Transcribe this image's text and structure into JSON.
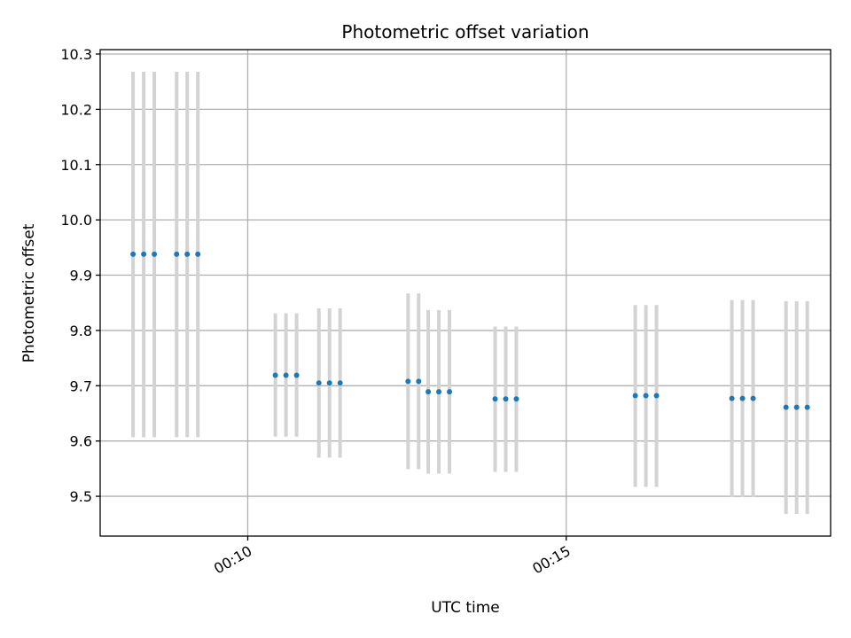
{
  "chart_data": {
    "type": "scatter",
    "title": "Photometric offset variation",
    "xlabel": "UTC time",
    "ylabel": "Photometric offset",
    "x_axis_kind": "time",
    "xlim": [
      "00:07:41",
      "00:19:09"
    ],
    "ylim": [
      9.428,
      10.308
    ],
    "x_ticks": [
      "00:10",
      "00:15"
    ],
    "y_ticks": [
      9.5,
      9.6,
      9.7,
      9.8,
      9.9,
      10.0,
      10.1,
      10.2,
      10.3
    ],
    "y_tick_labels": [
      "9.5",
      "9.6",
      "9.7",
      "9.8",
      "9.9",
      "10.0",
      "10.1",
      "10.2",
      "10.3"
    ],
    "grid": true,
    "legend": "none",
    "marker_color": "#1f77b4",
    "errorbar_color": "#d3d3d3",
    "points": [
      {
        "t": "00:08:12",
        "y": 9.938,
        "lo": 9.607,
        "hi": 10.268
      },
      {
        "t": "00:08:22",
        "y": 9.938,
        "lo": 9.607,
        "hi": 10.268
      },
      {
        "t": "00:08:32",
        "y": 9.938,
        "lo": 9.607,
        "hi": 10.268
      },
      {
        "t": "00:08:53",
        "y": 9.938,
        "lo": 9.607,
        "hi": 10.268
      },
      {
        "t": "00:09:03",
        "y": 9.938,
        "lo": 9.607,
        "hi": 10.268
      },
      {
        "t": "00:09:13",
        "y": 9.938,
        "lo": 9.607,
        "hi": 10.268
      },
      {
        "t": "00:10:26",
        "y": 9.719,
        "lo": 9.608,
        "hi": 9.831
      },
      {
        "t": "00:10:36",
        "y": 9.719,
        "lo": 9.608,
        "hi": 9.831
      },
      {
        "t": "00:10:46",
        "y": 9.719,
        "lo": 9.608,
        "hi": 9.831
      },
      {
        "t": "00:11:07",
        "y": 9.705,
        "lo": 9.57,
        "hi": 9.84
      },
      {
        "t": "00:11:17",
        "y": 9.705,
        "lo": 9.57,
        "hi": 9.84
      },
      {
        "t": "00:11:27",
        "y": 9.705,
        "lo": 9.57,
        "hi": 9.84
      },
      {
        "t": "00:12:31",
        "y": 9.708,
        "lo": 9.549,
        "hi": 9.867
      },
      {
        "t": "00:12:41",
        "y": 9.708,
        "lo": 9.549,
        "hi": 9.867
      },
      {
        "t": "00:12:50",
        "y": 9.689,
        "lo": 9.541,
        "hi": 9.837
      },
      {
        "t": "00:13:00",
        "y": 9.689,
        "lo": 9.541,
        "hi": 9.837
      },
      {
        "t": "00:13:10",
        "y": 9.689,
        "lo": 9.541,
        "hi": 9.837
      },
      {
        "t": "00:13:53",
        "y": 9.676,
        "lo": 9.544,
        "hi": 9.807
      },
      {
        "t": "00:14:03",
        "y": 9.676,
        "lo": 9.544,
        "hi": 9.807
      },
      {
        "t": "00:14:13",
        "y": 9.676,
        "lo": 9.544,
        "hi": 9.807
      },
      {
        "t": "00:16:05",
        "y": 9.682,
        "lo": 9.517,
        "hi": 9.846
      },
      {
        "t": "00:16:15",
        "y": 9.682,
        "lo": 9.517,
        "hi": 9.846
      },
      {
        "t": "00:16:25",
        "y": 9.682,
        "lo": 9.517,
        "hi": 9.846
      },
      {
        "t": "00:17:36",
        "y": 9.677,
        "lo": 9.499,
        "hi": 9.855
      },
      {
        "t": "00:17:46",
        "y": 9.677,
        "lo": 9.499,
        "hi": 9.855
      },
      {
        "t": "00:17:56",
        "y": 9.677,
        "lo": 9.499,
        "hi": 9.855
      },
      {
        "t": "00:18:27",
        "y": 9.661,
        "lo": 9.468,
        "hi": 9.853
      },
      {
        "t": "00:18:37",
        "y": 9.661,
        "lo": 9.468,
        "hi": 9.853
      },
      {
        "t": "00:18:47",
        "y": 9.661,
        "lo": 9.468,
        "hi": 9.853
      }
    ]
  }
}
